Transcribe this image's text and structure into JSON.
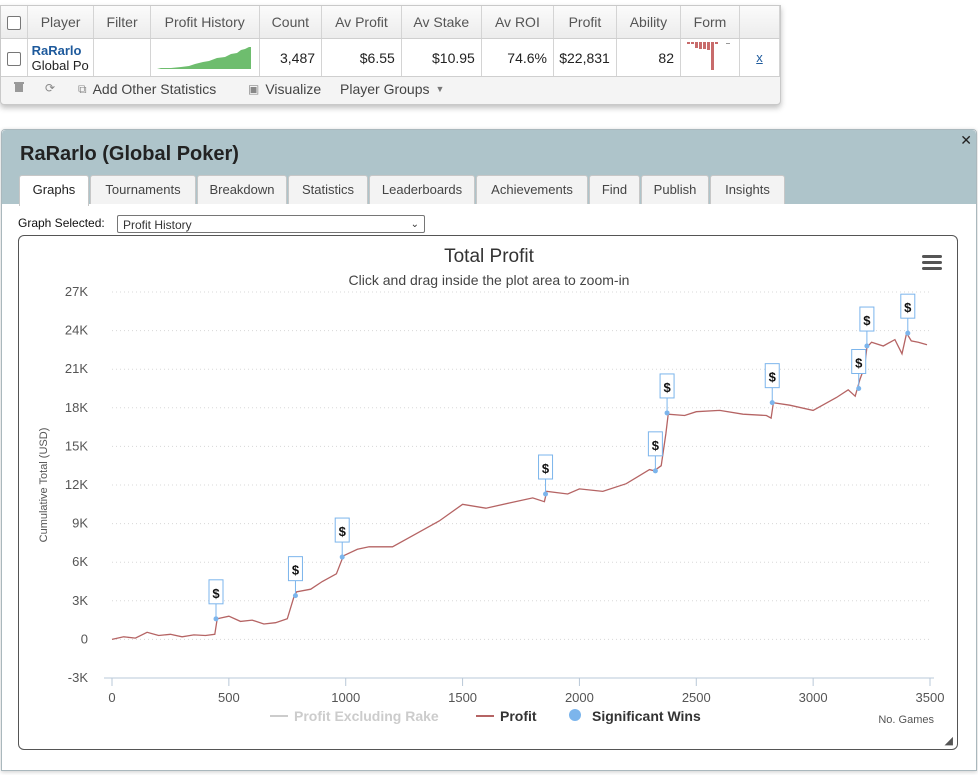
{
  "stats_table": {
    "headers": [
      "Player",
      "Filter",
      "Profit History",
      "Count",
      "Av Profit",
      "Av Stake",
      "Av ROI",
      "Profit",
      "Ability",
      "Form"
    ],
    "row": {
      "player_name": "RaRarlo",
      "player_site": "Global Po",
      "filter": "",
      "count": "3,487",
      "av_profit": "$6.55",
      "av_stake": "$10.95",
      "av_roi": "74.6%",
      "profit": "$22,831",
      "ability": "82",
      "remove_link": "x"
    }
  },
  "toolbar": {
    "add_stats": "Add Other Statistics",
    "visualize": "Visualize",
    "player_groups": "Player Groups"
  },
  "panel": {
    "title": "RaRarlo (Global Poker)",
    "close_icon": "close-icon",
    "tabs": [
      {
        "label": "Graphs",
        "active": true
      },
      {
        "label": "Tournaments"
      },
      {
        "label": "Breakdown"
      },
      {
        "label": "Statistics"
      },
      {
        "label": "Leaderboards"
      },
      {
        "label": "Achievements"
      },
      {
        "label": "Find"
      },
      {
        "label": "Publish"
      },
      {
        "label": "Insights"
      }
    ],
    "graph_selected_label": "Graph Selected:",
    "graph_selected_value": "Profit History"
  },
  "chart_data": {
    "type": "line",
    "title": "Total Profit",
    "subtitle": "Click and drag inside the plot area to zoom-in",
    "ylabel": "Cumulative Total (USD)",
    "xlabel": "No. Games",
    "ylim": [
      -3000,
      27000
    ],
    "xlim": [
      0,
      3500
    ],
    "y_ticks": [
      "-3K",
      "0",
      "3K",
      "6K",
      "9K",
      "12K",
      "15K",
      "18K",
      "21K",
      "24K",
      "27K"
    ],
    "x_ticks": [
      "0",
      "500",
      "1000",
      "1500",
      "2000",
      "2500",
      "3000",
      "3500"
    ],
    "grid": true,
    "legend_position": "bottom",
    "series": [
      {
        "name": "Profit Excluding Rake",
        "color": "#cccccc",
        "hidden": true
      },
      {
        "name": "Profit",
        "color": "#b56464",
        "x": [
          0,
          50,
          100,
          150,
          200,
          250,
          300,
          350,
          400,
          440,
          450,
          500,
          550,
          600,
          650,
          700,
          750,
          780,
          790,
          850,
          900,
          960,
          990,
          1050,
          1100,
          1200,
          1300,
          1400,
          1500,
          1600,
          1700,
          1800,
          1850,
          1860,
          1950,
          2000,
          2100,
          2200,
          2300,
          2320,
          2350,
          2370,
          2380,
          2450,
          2500,
          2600,
          2700,
          2800,
          2820,
          2830,
          2900,
          3000,
          3100,
          3150,
          3180,
          3200,
          3220,
          3230,
          3250,
          3300,
          3350,
          3380,
          3400,
          3420,
          3450,
          3487
        ],
        "y": [
          0,
          200,
          100,
          550,
          300,
          400,
          200,
          350,
          300,
          400,
          1600,
          1800,
          1400,
          1500,
          1200,
          1300,
          1600,
          3400,
          3700,
          3900,
          4500,
          5100,
          6500,
          7000,
          7200,
          7200,
          8200,
          9200,
          10500,
          10200,
          10600,
          11000,
          10700,
          11500,
          11300,
          11700,
          11500,
          12100,
          13200,
          13100,
          13500,
          16000,
          17500,
          17400,
          17700,
          17800,
          17500,
          17400,
          17200,
          18400,
          18200,
          17800,
          18800,
          19400,
          18900,
          20200,
          21200,
          22700,
          23100,
          22800,
          23300,
          22200,
          23800,
          23200,
          23100,
          22900
        ]
      },
      {
        "name": "Significant Wins",
        "color": "#7cb5ec",
        "x": [
          445,
          785,
          985,
          1855,
          2325,
          2375,
          2825,
          3195,
          3230,
          3405
        ],
        "y": [
          1600,
          3400,
          6400,
          11300,
          13100,
          17600,
          18400,
          19500,
          22800,
          23800
        ]
      }
    ],
    "flag_label": "$"
  }
}
